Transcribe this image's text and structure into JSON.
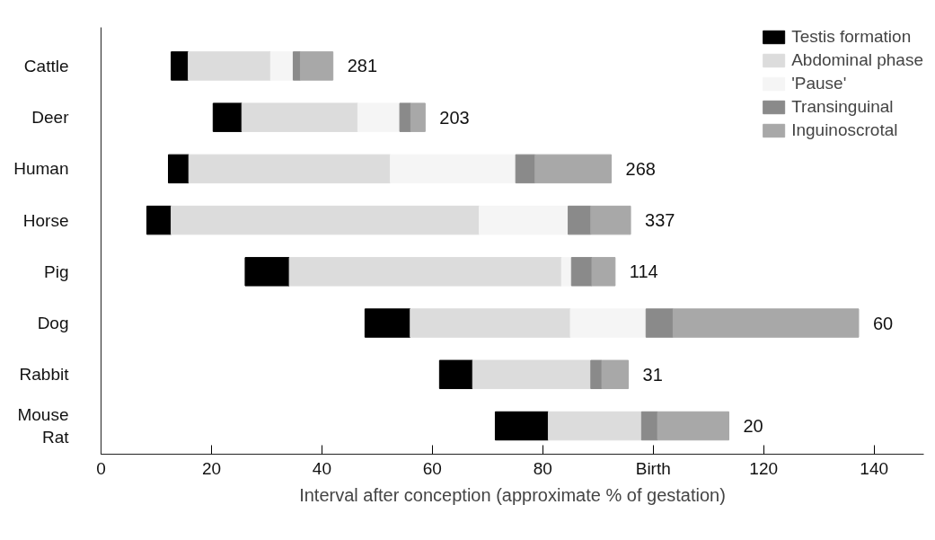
{
  "chart_data": {
    "type": "bar",
    "orientation": "horizontal",
    "xlabel": "Interval after conception (approximate % of gestation)",
    "categories": [
      "Cattle",
      "Deer",
      "Human",
      "Horse",
      "Pig",
      "Dog",
      "Rabbit",
      "Mouse\nRat"
    ],
    "series": [
      {
        "name": "Testis formation",
        "color": "#000000",
        "base": [
          12.7,
          20.3,
          12.2,
          8.3,
          26.1,
          47.8,
          61.3,
          71.4
        ],
        "values": [
          3.1,
          5.2,
          3.7,
          4.4,
          8.0,
          8.2,
          6.0,
          9.6
        ]
      },
      {
        "name": "Abdominal phase",
        "color": "#dcdcdc",
        "base": [
          15.8,
          25.5,
          15.9,
          12.7,
          34.1,
          56.0,
          67.3,
          81.0
        ],
        "values": [
          14.9,
          21.0,
          36.5,
          55.8,
          49.3,
          29.0,
          21.4,
          16.9
        ]
      },
      {
        "name": "'Pause'",
        "color": "#f5f5f5",
        "base": [
          30.7,
          46.5,
          52.4,
          68.5,
          83.4,
          85.0,
          null,
          null
        ],
        "values": [
          4.1,
          7.6,
          22.7,
          16.1,
          1.8,
          13.7,
          null,
          null
        ]
      },
      {
        "name": "Transinguinal",
        "color": "#8a8a8a",
        "base": [
          34.8,
          54.1,
          75.1,
          84.6,
          85.2,
          98.7,
          88.7,
          97.9
        ],
        "values": [
          1.3,
          2.0,
          3.5,
          4.1,
          3.7,
          4.9,
          2.0,
          2.9
        ]
      },
      {
        "name": "Inguinoscrotal",
        "color": "#a8a8a8",
        "base": [
          36.1,
          56.1,
          78.6,
          88.7,
          88.9,
          103.6,
          90.7,
          100.8
        ],
        "values": [
          5.9,
          2.6,
          13.8,
          7.2,
          4.2,
          33.6,
          4.8,
          12.9
        ]
      }
    ],
    "xlim": [
      0,
      149
    ],
    "xticks": [
      0,
      20,
      40,
      60,
      80,
      {
        "value": 100,
        "label": "Birth"
      },
      120,
      140
    ],
    "annotations": [
      "281",
      "203",
      "268",
      "337",
      "114",
      "60",
      "31",
      "20"
    ],
    "grid": false,
    "legend": "top right"
  }
}
